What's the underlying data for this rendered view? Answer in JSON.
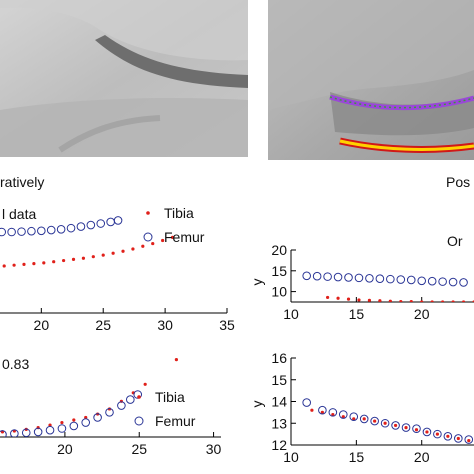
{
  "captions": {
    "left": "ratively",
    "right": "Pos"
  },
  "colors": {
    "tibia": "#e0201a",
    "femur": "#2a3596",
    "axis": "#000000",
    "purple": "#9a48d8",
    "green": "#3c9a3c",
    "yellow": "#ffd200",
    "red": "#d01818"
  },
  "chart_data": [
    {
      "id": "top-left",
      "type": "scatter",
      "title": "l data",
      "xlim": [
        16.5,
        35
      ],
      "ylim": [
        0,
        28
      ],
      "xticks": [
        20,
        25,
        30,
        35
      ],
      "xtick_labels": [
        "20",
        "25",
        "30",
        "35"
      ],
      "legend": {
        "placement": "top-right",
        "entries": [
          "Tibia",
          "Femur"
        ]
      },
      "series": [
        {
          "name": "Tibia",
          "marker": "dot",
          "x": [
            17,
            17.8,
            18.6,
            19.4,
            20.2,
            21.0,
            21.8,
            22.6,
            23.4,
            24.2,
            25.0,
            25.8,
            26.6,
            27.4,
            28.2,
            29.0,
            29.8,
            30.6
          ],
          "y": [
            12.2,
            12.4,
            12.6,
            12.8,
            13.0,
            13.3,
            13.6,
            13.9,
            14.2,
            14.6,
            15.0,
            15.5,
            16.0,
            16.6,
            17.3,
            18.0,
            18.8,
            19.6
          ]
        },
        {
          "name": "Femur",
          "marker": "circle",
          "x": [
            16.8,
            17.6,
            18.4,
            19.2,
            20.0,
            20.8,
            21.6,
            22.4,
            23.2,
            24.0,
            24.8,
            25.6,
            26.2
          ],
          "y": [
            21.0,
            21.0,
            21.1,
            21.2,
            21.3,
            21.5,
            21.7,
            22.0,
            22.4,
            22.8,
            23.2,
            23.6,
            24.0
          ]
        }
      ]
    },
    {
      "id": "top-right",
      "type": "scatter",
      "title": "Or",
      "xlabel": "",
      "ylabel": "y",
      "xlim": [
        10,
        24
      ],
      "ylim": [
        7.5,
        20
      ],
      "xticks": [
        10,
        15,
        20
      ],
      "xtick_labels": [
        "10",
        "15",
        "20"
      ],
      "yticks": [
        10,
        15,
        20
      ],
      "ytick_labels": [
        "10",
        "15",
        "20"
      ],
      "series": [
        {
          "name": "Tibia",
          "marker": "dot",
          "x": [
            12.8,
            13.6,
            14.4,
            15.2,
            16.0,
            16.8,
            17.6,
            18.4,
            19.2,
            20.0,
            20.8,
            21.6,
            22.4,
            23.2,
            24.0
          ],
          "y": [
            8.6,
            8.4,
            8.2,
            8.0,
            7.9,
            7.8,
            7.7,
            7.6,
            7.6,
            7.5,
            7.5,
            7.5,
            7.5,
            7.5,
            7.5
          ]
        },
        {
          "name": "Femur",
          "marker": "circle",
          "x": [
            11.2,
            12.0,
            12.8,
            13.6,
            14.4,
            15.2,
            16.0,
            16.8,
            17.6,
            18.4,
            19.2,
            20.0,
            20.8,
            21.6,
            22.4,
            23.2
          ],
          "y": [
            13.8,
            13.7,
            13.6,
            13.5,
            13.4,
            13.3,
            13.2,
            13.1,
            13.0,
            12.9,
            12.8,
            12.6,
            12.5,
            12.4,
            12.3,
            12.2
          ]
        }
      ]
    },
    {
      "id": "bottom-left",
      "type": "scatter",
      "annotation": "0.83",
      "xlim": [
        15.5,
        30.5
      ],
      "ylim": [
        0,
        10
      ],
      "xticks": [
        20,
        25,
        30
      ],
      "xtick_labels": [
        "20",
        "25",
        "30"
      ],
      "legend": {
        "placement": "right",
        "entries": [
          "Tibia",
          "Femur"
        ]
      },
      "series": [
        {
          "name": "Tibia",
          "marker": "dot",
          "x": [
            15.8,
            16.6,
            17.4,
            18.2,
            19.0,
            19.8,
            20.6,
            21.4,
            22.2,
            23.0,
            23.8,
            24.6,
            25.4,
            27.5
          ],
          "y": [
            0.6,
            0.7,
            0.9,
            1.1,
            1.4,
            1.7,
            2.0,
            2.3,
            2.7,
            3.3,
            4.2,
            5.2,
            6.2,
            9.1
          ]
        },
        {
          "name": "Femur",
          "marker": "circle",
          "x": [
            15.8,
            16.6,
            17.4,
            18.2,
            19.0,
            19.8,
            20.6,
            21.4,
            22.2,
            23.0,
            23.8,
            24.4,
            24.9
          ],
          "y": [
            0.3,
            0.4,
            0.5,
            0.6,
            0.8,
            1.0,
            1.3,
            1.7,
            2.3,
            2.9,
            3.7,
            4.4,
            5.0
          ]
        }
      ]
    },
    {
      "id": "bottom-right",
      "type": "scatter",
      "xlabel": "",
      "ylabel": "y",
      "xlim": [
        10,
        24
      ],
      "ylim": [
        12,
        16
      ],
      "xticks": [
        10,
        15,
        20
      ],
      "xtick_labels": [
        "10",
        "15",
        "20"
      ],
      "yticks": [
        12,
        13,
        14,
        15,
        16
      ],
      "ytick_labels": [
        "12",
        "13",
        "14",
        "15",
        "16"
      ],
      "series": [
        {
          "name": "Tibia",
          "marker": "dot",
          "x": [
            11.6,
            12.4,
            13.2,
            14.0,
            14.8,
            15.6,
            16.4,
            17.2,
            18.0,
            18.8,
            19.6,
            20.4,
            21.2,
            22.0,
            22.8,
            23.6
          ],
          "y": [
            13.6,
            13.5,
            13.4,
            13.3,
            13.2,
            13.2,
            13.1,
            13.0,
            12.9,
            12.8,
            12.7,
            12.6,
            12.5,
            12.4,
            12.3,
            12.2
          ]
        },
        {
          "name": "Femur",
          "marker": "circle",
          "x": [
            11.2,
            12.4,
            13.2,
            14.0,
            14.8,
            15.6,
            16.4,
            17.2,
            18.0,
            18.8,
            19.6,
            20.4,
            21.2,
            22.0,
            22.8,
            23.6
          ],
          "y": [
            13.95,
            13.6,
            13.5,
            13.4,
            13.3,
            13.2,
            13.1,
            13.0,
            12.9,
            12.8,
            12.75,
            12.6,
            12.5,
            12.4,
            12.3,
            12.25
          ]
        }
      ]
    }
  ]
}
